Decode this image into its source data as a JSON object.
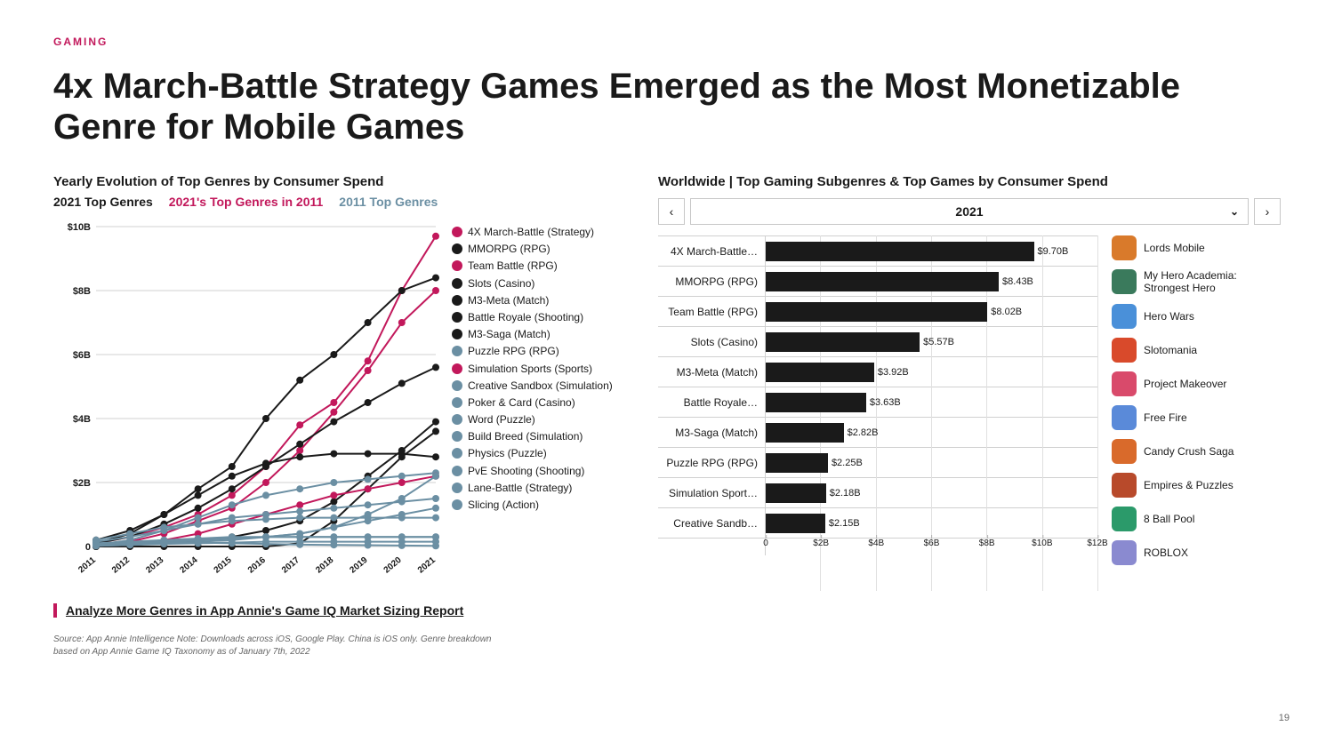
{
  "category": "GAMING",
  "title": "4x March-Battle Strategy Games Emerged as the Most Monetizable Genre for Mobile Games",
  "page_number": "19",
  "left": {
    "title": "Yearly Evolution of Top Genres by Consumer Spend",
    "legend": {
      "a": "2021 Top Genres",
      "b": "2021's Top Genres in 2011",
      "c": "2011 Top Genres"
    },
    "chart": {
      "type": "line",
      "ylim": [
        0,
        10
      ],
      "ytick_step": 2,
      "ytick_labels": [
        "0",
        "$2B",
        "$4B",
        "$6B",
        "$8B",
        "$10B"
      ],
      "xticks": [
        "2011",
        "2012",
        "2013",
        "2014",
        "2015",
        "2016",
        "2017",
        "2018",
        "2019",
        "2020",
        "2021"
      ],
      "colors": {
        "black": "#1a1a1a",
        "magenta": "#c2185b",
        "blue": "#6b8fa3"
      },
      "series": [
        {
          "name": "4X March-Battle (Strategy)",
          "color": "magenta",
          "data": [
            0.1,
            0.3,
            0.6,
            1.0,
            1.6,
            2.5,
            3.8,
            4.5,
            5.8,
            8.0,
            9.7
          ]
        },
        {
          "name": "MMORPG (RPG)",
          "color": "black",
          "data": [
            0.2,
            0.5,
            1.0,
            1.8,
            2.5,
            4.0,
            5.2,
            6.0,
            7.0,
            8.0,
            8.4
          ]
        },
        {
          "name": "Team Battle (RPG)",
          "color": "magenta",
          "data": [
            0.05,
            0.15,
            0.4,
            0.8,
            1.2,
            2.0,
            3.0,
            4.2,
            5.5,
            7.0,
            8.0
          ]
        },
        {
          "name": "Slots (Casino)",
          "color": "black",
          "data": [
            0.1,
            0.3,
            0.7,
            1.2,
            1.8,
            2.5,
            3.2,
            3.9,
            4.5,
            5.1,
            5.6
          ]
        },
        {
          "name": "M3-Meta (Match)",
          "color": "black",
          "data": [
            0.0,
            0.05,
            0.1,
            0.2,
            0.3,
            0.5,
            0.8,
            1.4,
            2.2,
            3.0,
            3.9
          ]
        },
        {
          "name": "Battle Royale (Shooting)",
          "color": "black",
          "data": [
            0.0,
            0.0,
            0.0,
            0.0,
            0.0,
            0.0,
            0.1,
            0.8,
            1.8,
            2.8,
            3.6
          ]
        },
        {
          "name": "M3-Saga (Match)",
          "color": "black",
          "data": [
            0.1,
            0.4,
            1.0,
            1.6,
            2.2,
            2.6,
            2.8,
            2.9,
            2.9,
            2.9,
            2.8
          ]
        },
        {
          "name": "Puzzle RPG (RPG)",
          "color": "blue",
          "data": [
            0.05,
            0.2,
            0.5,
            0.9,
            1.3,
            1.6,
            1.8,
            2.0,
            2.1,
            2.2,
            2.3
          ]
        },
        {
          "name": "Simulation Sports (Sports)",
          "color": "magenta",
          "data": [
            0.05,
            0.1,
            0.2,
            0.4,
            0.7,
            1.0,
            1.3,
            1.6,
            1.8,
            2.0,
            2.2
          ]
        },
        {
          "name": "Creative Sandbox (Simulation)",
          "color": "blue",
          "data": [
            0.02,
            0.05,
            0.1,
            0.15,
            0.2,
            0.3,
            0.4,
            0.6,
            1.0,
            1.5,
            2.2
          ]
        },
        {
          "name": "Poker & Card (Casino)",
          "color": "blue",
          "data": [
            0.15,
            0.3,
            0.5,
            0.7,
            0.9,
            1.0,
            1.1,
            1.2,
            1.3,
            1.4,
            1.5
          ]
        },
        {
          "name": "Word (Puzzle)",
          "color": "blue",
          "data": [
            0.05,
            0.1,
            0.15,
            0.2,
            0.25,
            0.3,
            0.4,
            0.6,
            0.8,
            1.0,
            1.2
          ]
        },
        {
          "name": "Build Breed (Simulation)",
          "color": "blue",
          "data": [
            0.2,
            0.4,
            0.6,
            0.7,
            0.8,
            0.85,
            0.9,
            0.9,
            0.9,
            0.9,
            0.9
          ]
        },
        {
          "name": "Physics (Puzzle)",
          "color": "blue",
          "data": [
            0.1,
            0.15,
            0.2,
            0.25,
            0.3,
            0.3,
            0.3,
            0.3,
            0.3,
            0.3,
            0.3
          ]
        },
        {
          "name": "PvE Shooting (Shooting)",
          "color": "blue",
          "data": [
            0.05,
            0.1,
            0.15,
            0.2,
            0.25,
            0.3,
            0.3,
            0.3,
            0.3,
            0.3,
            0.3
          ]
        },
        {
          "name": "Lane-Battle (Strategy)",
          "color": "blue",
          "data": [
            0.02,
            0.05,
            0.08,
            0.1,
            0.12,
            0.15,
            0.15,
            0.15,
            0.15,
            0.15,
            0.15
          ]
        },
        {
          "name": "Slicing (Action)",
          "color": "blue",
          "data": [
            0.08,
            0.1,
            0.12,
            0.12,
            0.1,
            0.08,
            0.06,
            0.05,
            0.04,
            0.03,
            0.02
          ]
        }
      ]
    },
    "link_text": "Analyze More Genres in App Annie's Game IQ Market Sizing Report",
    "source_note": "Source: App Annie Intelligence Note: Downloads across iOS, Google Play. China is iOS only. Genre breakdown based on App Annie Game IQ Taxonomy as of January 7th, 2022"
  },
  "right": {
    "title": "Worldwide | Top Gaming Subgenres & Top Games by Consumer Spend",
    "year": "2021",
    "chart": {
      "type": "bar",
      "xmax": 12,
      "xticks": [
        0,
        2,
        4,
        6,
        8,
        10,
        12
      ],
      "xtick_labels": [
        "0",
        "$2B",
        "$4B",
        "$6B",
        "$8B",
        "$10B",
        "$12B"
      ],
      "bar_color": "#1a1a1a",
      "bars": [
        {
          "label": "4X March-Battle…",
          "value": 9.7,
          "display": "$9.70B"
        },
        {
          "label": "MMORPG (RPG)",
          "value": 8.43,
          "display": "$8.43B"
        },
        {
          "label": "Team Battle (RPG)",
          "value": 8.02,
          "display": "$8.02B"
        },
        {
          "label": "Slots (Casino)",
          "value": 5.57,
          "display": "$5.57B"
        },
        {
          "label": "M3-Meta (Match)",
          "value": 3.92,
          "display": "$3.92B"
        },
        {
          "label": "Battle Royale…",
          "value": 3.63,
          "display": "$3.63B"
        },
        {
          "label": "M3-Saga (Match)",
          "value": 2.82,
          "display": "$2.82B"
        },
        {
          "label": "Puzzle RPG (RPG)",
          "value": 2.25,
          "display": "$2.25B"
        },
        {
          "label": "Simulation Sport…",
          "value": 2.18,
          "display": "$2.18B"
        },
        {
          "label": "Creative Sandb…",
          "value": 2.15,
          "display": "$2.15B"
        }
      ]
    },
    "games": [
      {
        "name": "Lords Mobile",
        "icon_color": "#d97a2b"
      },
      {
        "name": "My Hero Academia: Strongest Hero",
        "icon_color": "#3a7a5c"
      },
      {
        "name": "Hero Wars",
        "icon_color": "#4a90d9"
      },
      {
        "name": "Slotomania",
        "icon_color": "#d94a2b"
      },
      {
        "name": "Project Makeover",
        "icon_color": "#d94a6b"
      },
      {
        "name": "Free Fire",
        "icon_color": "#5a8ad9"
      },
      {
        "name": "Candy Crush Saga",
        "icon_color": "#d96a2b"
      },
      {
        "name": "Empires & Puzzles",
        "icon_color": "#b84a2b"
      },
      {
        "name": "8 Ball Pool",
        "icon_color": "#2b9a6a"
      },
      {
        "name": "ROBLOX",
        "icon_color": "#8a8ad0"
      }
    ]
  }
}
